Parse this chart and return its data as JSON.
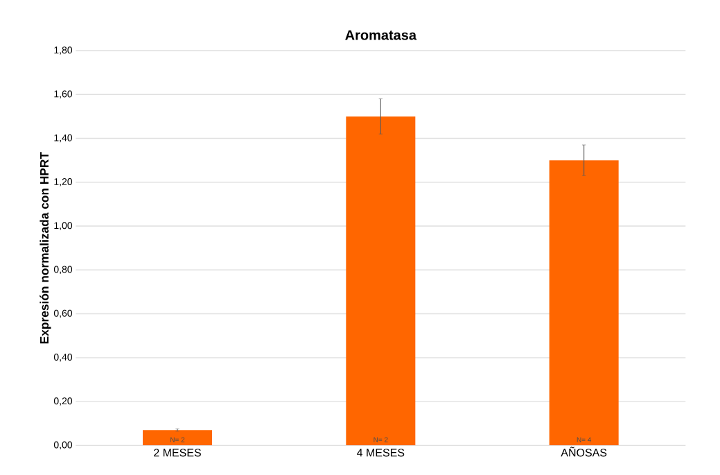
{
  "chart_data": {
    "type": "bar",
    "title": "Aromatasa",
    "ylabel": "Expresión normalizada con HPRT",
    "categories": [
      "2 MESES",
      "4 MESES",
      "AÑOSAS"
    ],
    "values": [
      0.07,
      1.5,
      1.3
    ],
    "errors": [
      0.005,
      0.08,
      0.07
    ],
    "color": "#ff6600",
    "ylim": [
      0,
      1.8
    ],
    "yticks": [
      {
        "value": 0,
        "label": "0,00"
      },
      {
        "value": 0.2,
        "label": "0,20"
      },
      {
        "value": 0.4,
        "label": "0,40"
      },
      {
        "value": 0.6,
        "label": "0,60"
      },
      {
        "value": 0.8,
        "label": "0,80"
      },
      {
        "value": 1.0,
        "label": "1,00"
      },
      {
        "value": 1.2,
        "label": "1,20"
      },
      {
        "value": 1.4,
        "label": "1,40"
      },
      {
        "value": 1.6,
        "label": "1,60"
      },
      {
        "value": 1.8,
        "label": "1,80"
      }
    ],
    "grid": "y",
    "annotations": [
      "N= 2",
      "N= 2",
      "N= 4"
    ]
  }
}
